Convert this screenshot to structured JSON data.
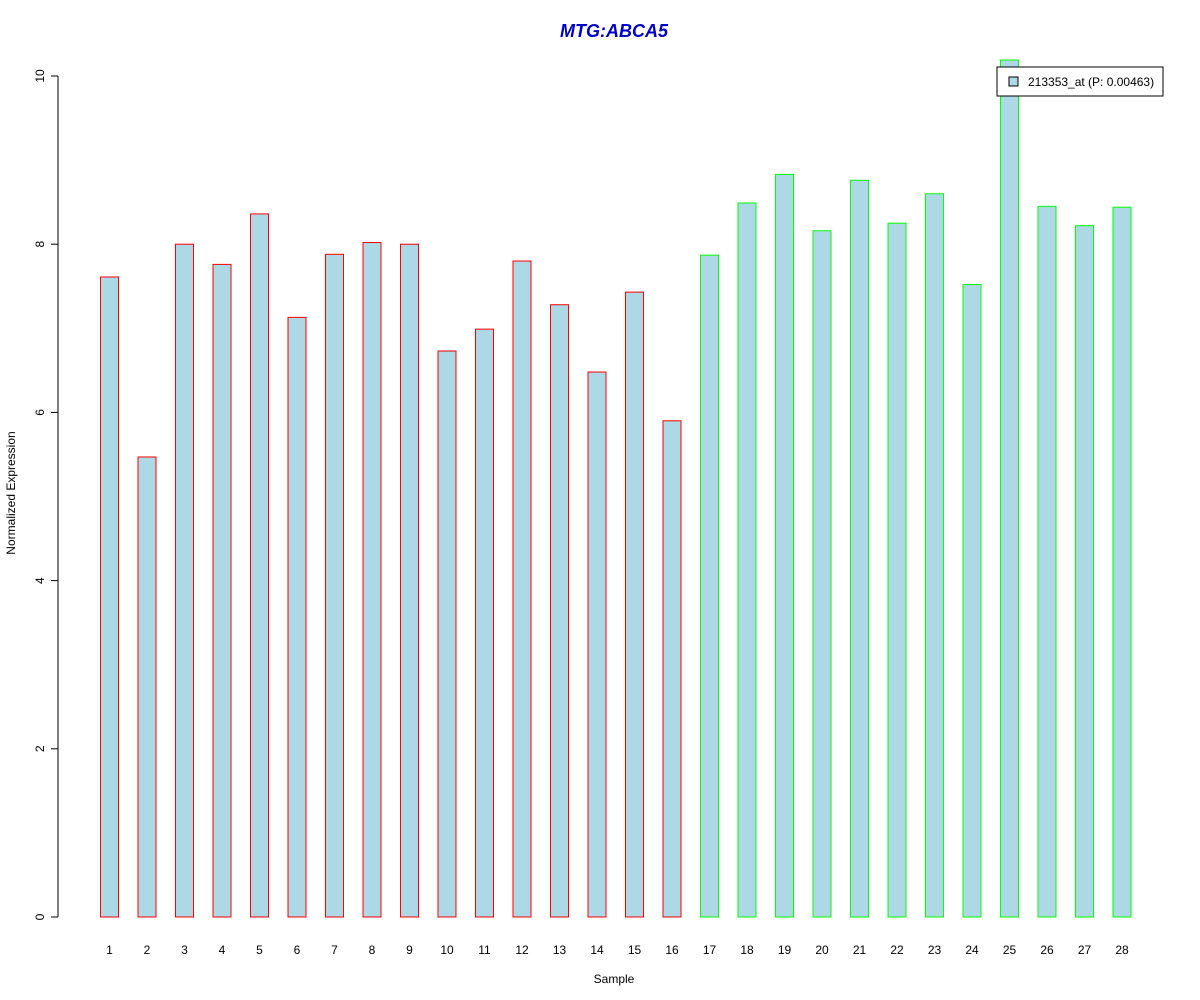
{
  "chart_data": {
    "type": "bar",
    "title": "MTG:ABCA5",
    "title_color": "#0000CC",
    "xlabel": "Sample",
    "ylabel": "Normalized Expression",
    "ylim": [
      0,
      10
    ],
    "yticks": [
      0,
      2,
      4,
      6,
      8,
      10
    ],
    "categories": [
      "1",
      "2",
      "3",
      "4",
      "5",
      "6",
      "7",
      "8",
      "9",
      "10",
      "11",
      "12",
      "13",
      "14",
      "15",
      "16",
      "17",
      "18",
      "19",
      "20",
      "21",
      "22",
      "23",
      "24",
      "25",
      "26",
      "27",
      "28"
    ],
    "series": [
      {
        "name": "213353_at (P: 0.00463)",
        "fill": "#ADD8E6",
        "values": [
          7.61,
          5.47,
          8.0,
          7.76,
          8.36,
          7.13,
          7.88,
          8.02,
          8.0,
          6.73,
          6.99,
          7.8,
          7.28,
          6.48,
          7.43,
          5.9,
          7.87,
          8.49,
          8.83,
          8.16,
          8.76,
          8.25,
          8.6,
          7.52,
          10.19,
          8.45,
          8.22,
          8.44
        ]
      }
    ],
    "border_colors": {
      "group1": "#FF0000",
      "group2": "#00FF00"
    },
    "group1_count": 16,
    "legend": {
      "position": "top-right",
      "label": "213353_at (P: 0.00463)"
    },
    "grid": false
  }
}
